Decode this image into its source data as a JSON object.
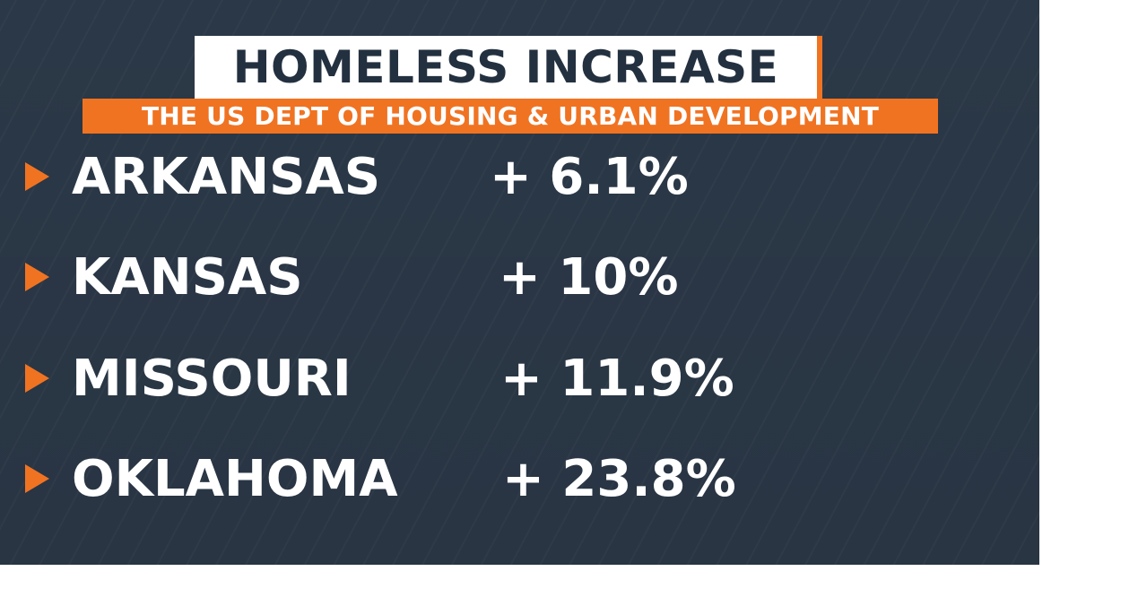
{
  "title": "HOMELESS INCREASE",
  "subtitle": "THE US DEPT OF HOUSING & URBAN DEVELOPMENT",
  "colors": {
    "background": "#2b3847",
    "accent": "#f07322",
    "title_box": "#ffffff",
    "title_text": "#23303f",
    "row_text": "#ffffff"
  },
  "rows": [
    {
      "state": "ARKANSAS",
      "change": "+ 6.1%",
      "bullet_icon": "play-triangle-icon"
    },
    {
      "state": "KANSAS",
      "change": "+ 10%",
      "bullet_icon": "play-triangle-icon"
    },
    {
      "state": "MISSOURI",
      "change": "+ 11.9%",
      "bullet_icon": "play-triangle-icon"
    },
    {
      "state": "OKLAHOMA",
      "change": "+ 23.8%",
      "bullet_icon": "play-triangle-icon"
    }
  ]
}
